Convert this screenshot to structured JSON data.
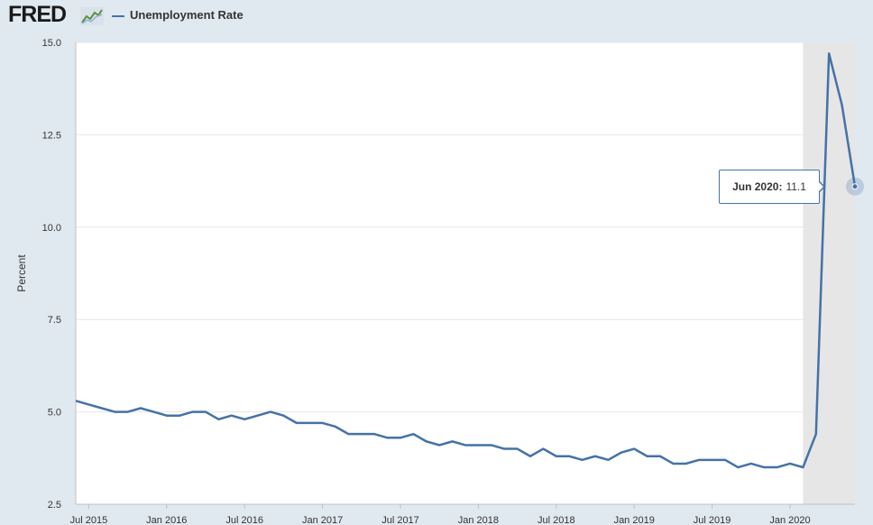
{
  "header": {
    "logo": "FRED",
    "logo_icon": "line-chart-icon",
    "series_label": "Unemployment Rate"
  },
  "colors": {
    "series": "#4572a7",
    "recession": "#e6e6e6",
    "grid": "#e6e6e6",
    "background": "#e1e9f0"
  },
  "tooltip": {
    "date": "Jun 2020:",
    "value": "11.1"
  },
  "chart_data": {
    "type": "line",
    "title": "",
    "xlabel": "",
    "ylabel": "Percent",
    "ylim": [
      2.5,
      15.0
    ],
    "grid": true,
    "legend": "top-left",
    "y_ticks": [
      "2.5",
      "5.0",
      "7.5",
      "10.0",
      "12.5",
      "15.0"
    ],
    "x_ticks": [
      "Jul 2015",
      "Jan 2016",
      "Jul 2016",
      "Jan 2017",
      "Jul 2017",
      "Jan 2018",
      "Jul 2018",
      "Jan 2019",
      "Jul 2019",
      "Jan 2020"
    ],
    "recession_shading": {
      "start": "2020-02",
      "end": "2020-06"
    },
    "series": [
      {
        "name": "Unemployment Rate",
        "x": [
          "2015-06",
          "2015-07",
          "2015-08",
          "2015-09",
          "2015-10",
          "2015-11",
          "2015-12",
          "2016-01",
          "2016-02",
          "2016-03",
          "2016-04",
          "2016-05",
          "2016-06",
          "2016-07",
          "2016-08",
          "2016-09",
          "2016-10",
          "2016-11",
          "2016-12",
          "2017-01",
          "2017-02",
          "2017-03",
          "2017-04",
          "2017-05",
          "2017-06",
          "2017-07",
          "2017-08",
          "2017-09",
          "2017-10",
          "2017-11",
          "2017-12",
          "2018-01",
          "2018-02",
          "2018-03",
          "2018-04",
          "2018-05",
          "2018-06",
          "2018-07",
          "2018-08",
          "2018-09",
          "2018-10",
          "2018-11",
          "2018-12",
          "2019-01",
          "2019-02",
          "2019-03",
          "2019-04",
          "2019-05",
          "2019-06",
          "2019-07",
          "2019-08",
          "2019-09",
          "2019-10",
          "2019-11",
          "2019-12",
          "2020-01",
          "2020-02",
          "2020-03",
          "2020-04",
          "2020-05",
          "2020-06"
        ],
        "values": [
          5.3,
          5.2,
          5.1,
          5.0,
          5.0,
          5.1,
          5.0,
          4.9,
          4.9,
          5.0,
          5.0,
          4.8,
          4.9,
          4.8,
          4.9,
          5.0,
          4.9,
          4.7,
          4.7,
          4.7,
          4.6,
          4.4,
          4.4,
          4.4,
          4.3,
          4.3,
          4.4,
          4.2,
          4.1,
          4.2,
          4.1,
          4.1,
          4.1,
          4.0,
          4.0,
          3.8,
          4.0,
          3.8,
          3.8,
          3.7,
          3.8,
          3.7,
          3.9,
          4.0,
          3.8,
          3.8,
          3.6,
          3.6,
          3.7,
          3.7,
          3.7,
          3.5,
          3.6,
          3.5,
          3.5,
          3.6,
          3.5,
          4.4,
          14.7,
          13.3,
          11.1
        ]
      }
    ]
  }
}
